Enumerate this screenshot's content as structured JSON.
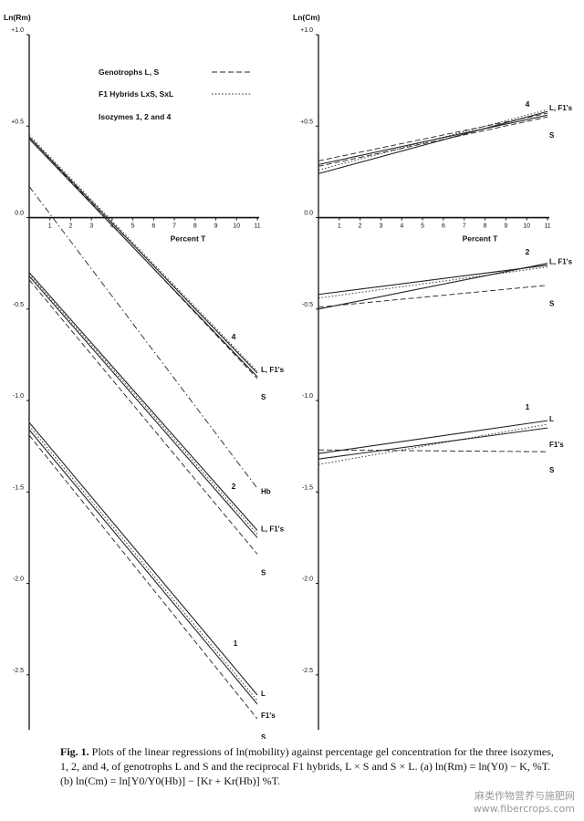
{
  "chart_data": [
    {
      "panel": "a",
      "type": "line",
      "ylabel": "Ln(Rm)",
      "xlabel": "Percent T",
      "xlim": [
        0,
        11
      ],
      "ylim": [
        -2.8,
        1.0
      ],
      "x_ticks": [
        1,
        2,
        3,
        4,
        5,
        6,
        7,
        8,
        9,
        10,
        11
      ],
      "y_ticks": [
        1.0,
        0.5,
        0.0,
        -0.5,
        -1.0,
        -1.5,
        -2.0,
        -2.5
      ],
      "y_tick_labels": [
        "+1.0",
        "+0.5",
        "0.0",
        "-0.5",
        "-1.0",
        "-1.5",
        "-2.0",
        "-2.5"
      ],
      "legend": [
        {
          "label": "Genotrophs L, S",
          "style": "dashed"
        },
        {
          "label": "F1 Hybrids LxS, SxL",
          "style": "dotted"
        },
        {
          "label": "Isozymes 1, 2 and 4",
          "style": "none"
        }
      ],
      "groups": [
        {
          "label": "4",
          "end_labels": [
            "L, F1's",
            "S"
          ],
          "series": [
            {
              "style": "solid",
              "values": [
                [
                  0,
                  0.44
                ],
                [
                  11,
                  -0.85
                ]
              ]
            },
            {
              "style": "dashed",
              "values": [
                [
                  0,
                  0.44
                ],
                [
                  11,
                  -0.88
                ]
              ]
            },
            {
              "style": "dotted",
              "values": [
                [
                  0,
                  0.45
                ],
                [
                  11,
                  -0.84
                ]
              ]
            },
            {
              "style": "solid",
              "values": [
                [
                  0,
                  0.43
                ],
                [
                  11,
                  -0.87
                ]
              ]
            }
          ]
        },
        {
          "label": "Hb",
          "end_labels": [
            "Hb"
          ],
          "series": [
            {
              "style": "dash-dot",
              "values": [
                [
                  0,
                  0.17
                ],
                [
                  11,
                  -1.48
                ]
              ]
            }
          ]
        },
        {
          "label": "2",
          "end_labels": [
            "L, F1's",
            "S"
          ],
          "series": [
            {
              "style": "solid",
              "values": [
                [
                  0,
                  -0.3
                ],
                [
                  11,
                  -1.71
                ]
              ]
            },
            {
              "style": "dotted",
              "values": [
                [
                  0,
                  -0.31
                ],
                [
                  11,
                  -1.73
                ]
              ]
            },
            {
              "style": "solid",
              "values": [
                [
                  0,
                  -0.32
                ],
                [
                  11,
                  -1.75
                ]
              ]
            },
            {
              "style": "dashed",
              "values": [
                [
                  0,
                  -0.34
                ],
                [
                  11,
                  -1.84
                ]
              ]
            }
          ]
        },
        {
          "label": "1",
          "end_labels": [
            "L",
            "F1's",
            "S"
          ],
          "series": [
            {
              "style": "solid",
              "values": [
                [
                  0,
                  -1.12
                ],
                [
                  11,
                  -2.61
                ]
              ]
            },
            {
              "style": "dotted",
              "values": [
                [
                  0,
                  -1.14
                ],
                [
                  11,
                  -2.64
                ]
              ]
            },
            {
              "style": "solid",
              "values": [
                [
                  0,
                  -1.16
                ],
                [
                  11,
                  -2.66
                ]
              ]
            },
            {
              "style": "dashed",
              "values": [
                [
                  0,
                  -1.19
                ],
                [
                  11,
                  -2.74
                ]
              ]
            }
          ]
        }
      ]
    },
    {
      "panel": "b",
      "type": "line",
      "ylabel": "Ln(Cm)",
      "xlabel": "Percent T",
      "xlim": [
        0,
        11
      ],
      "ylim": [
        -2.8,
        1.0
      ],
      "x_ticks": [
        1,
        2,
        3,
        4,
        5,
        6,
        7,
        8,
        9,
        10,
        11
      ],
      "y_ticks": [
        1.0,
        0.5,
        0.0,
        -0.5,
        -1.0,
        -1.5,
        -2.0,
        -2.5
      ],
      "y_tick_labels": [
        "+1.0",
        "+0.5",
        "0.0",
        "-0.5",
        "-1.0",
        "-1.5",
        "-2.0",
        "-2.5"
      ],
      "groups": [
        {
          "label": "4",
          "end_labels": [
            "L, F1's",
            "S"
          ],
          "series": [
            {
              "style": "solid",
              "values": [
                [
                  0,
                  0.24
                ],
                [
                  11,
                  0.58
                ]
              ]
            },
            {
              "style": "dotted",
              "values": [
                [
                  0,
                  0.26
                ],
                [
                  11,
                  0.59
                ]
              ]
            },
            {
              "style": "dashed",
              "values": [
                [
                  0,
                  0.31
                ],
                [
                  11,
                  0.57
                ]
              ]
            },
            {
              "style": "solid",
              "values": [
                [
                  0,
                  0.29
                ],
                [
                  11,
                  0.56
                ]
              ]
            },
            {
              "style": "dashed",
              "values": [
                [
                  0,
                  0.28
                ],
                [
                  11,
                  0.55
                ]
              ]
            }
          ]
        },
        {
          "label": "2",
          "end_labels": [
            "L, F1's",
            "S"
          ],
          "series": [
            {
              "style": "solid",
              "values": [
                [
                  0,
                  -0.5
                ],
                [
                  11,
                  -0.25
                ]
              ]
            },
            {
              "style": "dotted",
              "values": [
                [
                  0,
                  -0.44
                ],
                [
                  11,
                  -0.27
                ]
              ]
            },
            {
              "style": "solid",
              "values": [
                [
                  0,
                  -0.42
                ],
                [
                  11,
                  -0.26
                ]
              ]
            },
            {
              "style": "dashed",
              "values": [
                [
                  0,
                  -0.49
                ],
                [
                  11,
                  -0.37
                ]
              ]
            }
          ]
        },
        {
          "label": "1",
          "end_labels": [
            "L",
            "F1's",
            "S"
          ],
          "series": [
            {
              "style": "solid",
              "values": [
                [
                  0,
                  -1.29
                ],
                [
                  11,
                  -1.11
                ]
              ]
            },
            {
              "style": "dotted",
              "values": [
                [
                  0,
                  -1.35
                ],
                [
                  11,
                  -1.13
                ]
              ]
            },
            {
              "style": "solid",
              "values": [
                [
                  0,
                  -1.32
                ],
                [
                  11,
                  -1.15
                ]
              ]
            },
            {
              "style": "dashed",
              "values": [
                [
                  0,
                  -1.27
                ],
                [
                  11,
                  -1.28
                ]
              ]
            }
          ]
        }
      ]
    }
  ],
  "caption": {
    "lead": "Fig. 1.",
    "text": "Plots of the linear regressions of ln(mobility) against percentage gel concentration for the three isozymes, 1, 2, and 4, of genotrophs L and S and the reciprocal F1 hybrids, L × S and S × L. (a) ln(Rm) = ln(Y0) − K, %T. (b) ln(Cm) = ln[Y0/Y0(Hb)] − [Kr + Kr(Hb)] %T."
  },
  "watermark": {
    "line1": "麻类作物营养与施肥网",
    "line2": "www.fibercrops.com"
  }
}
